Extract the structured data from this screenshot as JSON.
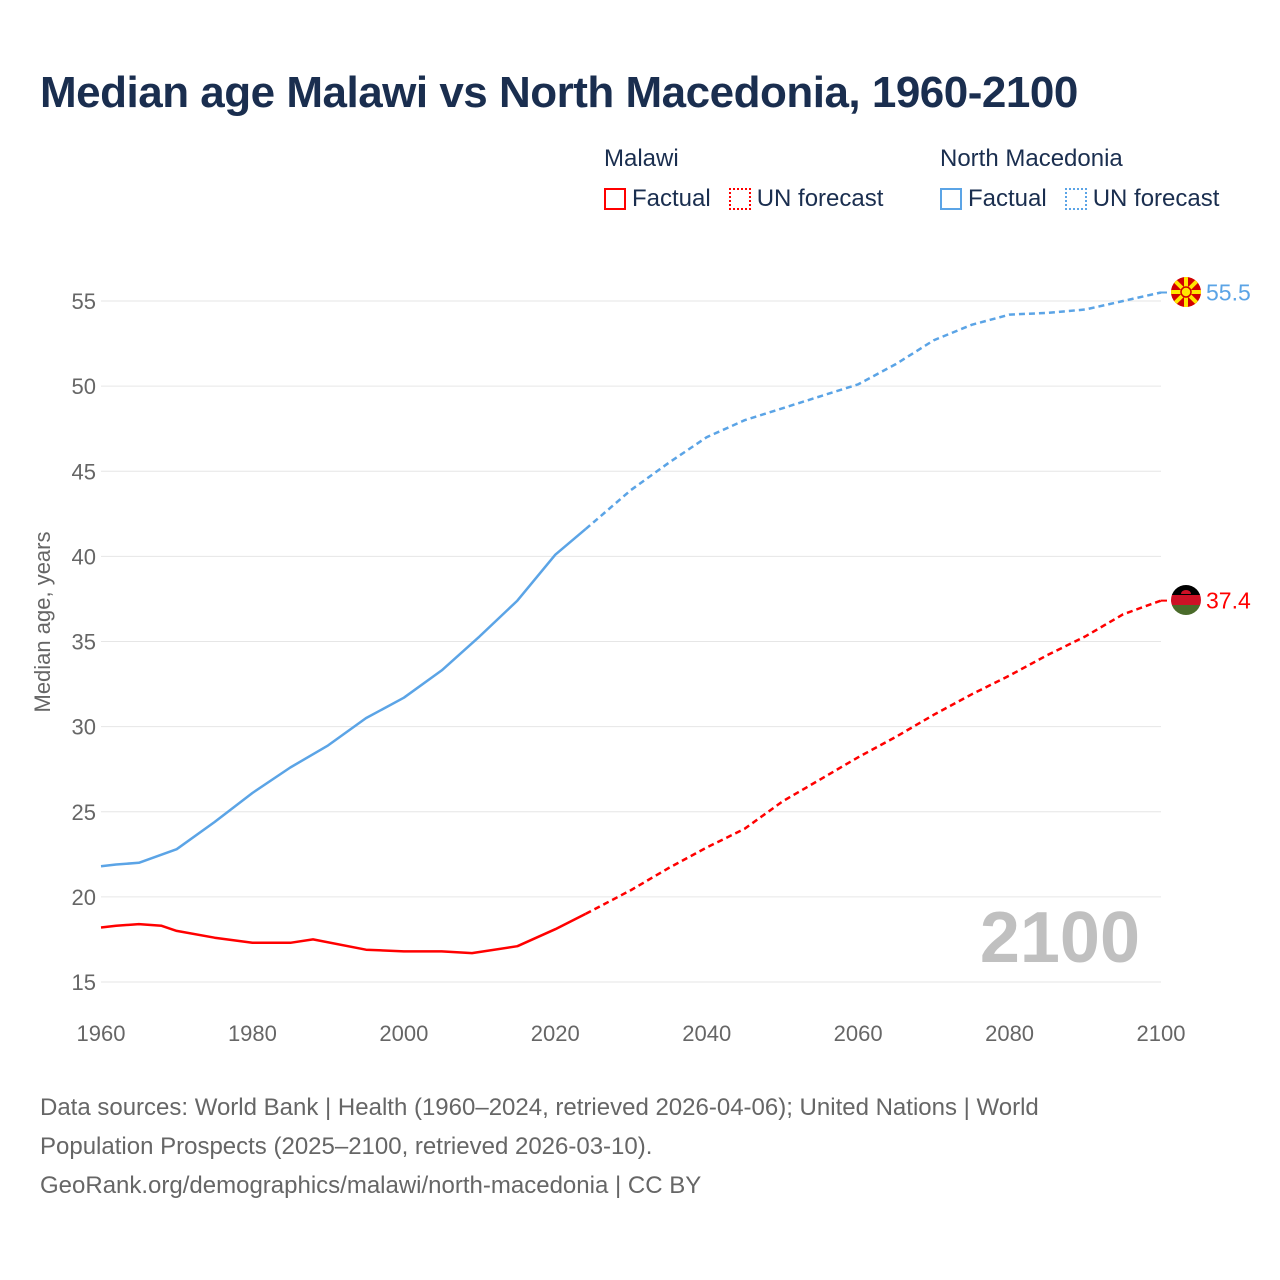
{
  "title": "Median age Malawi vs North Macedonia, 1960-2100",
  "legend": {
    "groups": [
      {
        "name": "Malawi",
        "factual": "Factual",
        "forecast": "UN forecast",
        "color": "#ff0000"
      },
      {
        "name": "North Macedonia",
        "factual": "Factual",
        "forecast": "UN forecast",
        "color": "#5ba4e6"
      }
    ]
  },
  "year_watermark": "2100",
  "footer": {
    "line1": "Data sources: World Bank | Health (1960–2024, retrieved 2026-04-06); United Nations | World",
    "line2": "Population Prospects (2025–2100, retrieved 2026-03-10).",
    "line3": "GeoRank.org/demographics/malawi/north-macedonia | CC BY"
  },
  "chart_data": {
    "type": "line",
    "title": "Median age Malawi vs North Macedonia, 1960-2100",
    "xlabel": "",
    "ylabel": "Median age, years",
    "xlim": [
      1960,
      2100
    ],
    "ylim": [
      15,
      57
    ],
    "x_ticks": [
      1960,
      1980,
      2000,
      2020,
      2040,
      2060,
      2080,
      2100
    ],
    "y_ticks": [
      15,
      20,
      25,
      30,
      35,
      40,
      45,
      50,
      55
    ],
    "grid": true,
    "factual_until": 2024,
    "series": [
      {
        "name": "North Macedonia",
        "color": "#5ba4e6",
        "end_label": "55.5",
        "x": [
          1960,
          1962,
          1965,
          1970,
          1975,
          1980,
          1985,
          1990,
          1995,
          2000,
          2005,
          2010,
          2015,
          2020,
          2024,
          2030,
          2035,
          2040,
          2045,
          2050,
          2055,
          2060,
          2065,
          2070,
          2075,
          2080,
          2085,
          2090,
          2095,
          2100
        ],
        "y": [
          21.8,
          21.9,
          22.0,
          22.8,
          24.4,
          26.1,
          27.6,
          28.9,
          30.5,
          31.7,
          33.3,
          35.3,
          37.4,
          40.1,
          41.6,
          43.9,
          45.5,
          47.0,
          48.0,
          48.7,
          49.4,
          50.1,
          51.3,
          52.7,
          53.6,
          54.2,
          54.3,
          54.5,
          55.0,
          55.5
        ]
      },
      {
        "name": "Malawi",
        "color": "#ff0000",
        "end_label": "37.4",
        "x": [
          1960,
          1962,
          1965,
          1968,
          1970,
          1975,
          1980,
          1985,
          1988,
          1995,
          2000,
          2005,
          2009,
          2015,
          2020,
          2024,
          2030,
          2035,
          2040,
          2045,
          2050,
          2055,
          2060,
          2065,
          2070,
          2075,
          2080,
          2085,
          2090,
          2095,
          2100
        ],
        "y": [
          18.2,
          18.3,
          18.4,
          18.3,
          18.0,
          17.6,
          17.3,
          17.3,
          17.5,
          16.9,
          16.8,
          16.8,
          16.7,
          17.1,
          18.1,
          19.0,
          20.4,
          21.7,
          22.9,
          24.0,
          25.6,
          26.9,
          28.2,
          29.4,
          30.7,
          31.9,
          33.0,
          34.2,
          35.3,
          36.6,
          37.4
        ]
      }
    ]
  }
}
